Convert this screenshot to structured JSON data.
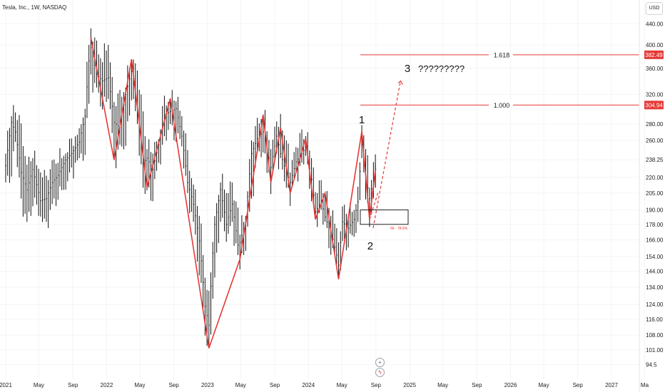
{
  "header": {
    "symbol": "Tesla, Inc., 1W, NASDAQ"
  },
  "currency_button": {
    "label": "USD"
  },
  "buttons": {
    "plus_icon": "+",
    "flash_icon": "ϟ"
  },
  "colors": {
    "accent": "#e53935",
    "candle": "#111111",
    "grid": "#f3f4f6",
    "axis_text": "#222222"
  },
  "chart_data": {
    "type": "candlestick",
    "instrument": "Tesla, Inc., 1W, NASDAQ",
    "scale": "log",
    "currency": "USD",
    "y_ticks": [
      440,
      400,
      360,
      320,
      280,
      260,
      238.25,
      220,
      205,
      190,
      178,
      166,
      154,
      144,
      134,
      124,
      116,
      108,
      101,
      94.5
    ],
    "x_ticks": [
      "2021",
      "May",
      "Sep",
      "2022",
      "May",
      "Sep",
      "2023",
      "May",
      "Sep",
      "2024",
      "May",
      "Sep",
      "2025",
      "May",
      "Sep",
      "2026",
      "May",
      "Sep",
      "2027",
      "Ma"
    ],
    "price_badges": [
      {
        "label": "382.49",
        "value": 382.49
      },
      {
        "label": "304.94",
        "value": 304.94
      }
    ],
    "fib_levels": [
      {
        "label": "1.618",
        "value": 382.49
      },
      {
        "label": "1.000",
        "value": 304.94
      }
    ],
    "wave_labels": [
      {
        "text": "1",
        "price": 270,
        "date": "2024-07-12"
      },
      {
        "text": "2",
        "price": 182,
        "date": "2024-08-09"
      },
      {
        "text": "3",
        "price": 340,
        "date": "2024-12-20"
      }
    ],
    "question_marks": "?????????",
    "target_zone": {
      "label": "66 - 78.6%",
      "low": 178,
      "high": 190
    },
    "zigzag": [
      {
        "date": "2021-11-05",
        "price": 414
      },
      {
        "date": "2022-01-28",
        "price": 238
      },
      {
        "date": "2022-04-01",
        "price": 375
      },
      {
        "date": "2022-05-27",
        "price": 210
      },
      {
        "date": "2022-08-19",
        "price": 314
      },
      {
        "date": "2023-01-06",
        "price": 101.8
      },
      {
        "date": "2023-04-28",
        "price": 152
      },
      {
        "date": "2023-07-21",
        "price": 292
      },
      {
        "date": "2023-08-18",
        "price": 215
      },
      {
        "date": "2023-09-22",
        "price": 275
      },
      {
        "date": "2023-10-27",
        "price": 205
      },
      {
        "date": "2023-12-22",
        "price": 262
      },
      {
        "date": "2024-01-26",
        "price": 182
      },
      {
        "date": "2024-03-01",
        "price": 205
      },
      {
        "date": "2024-04-19",
        "price": 139
      },
      {
        "date": "2024-07-12",
        "price": 271
      },
      {
        "date": "2024-08-09",
        "price": 182
      },
      {
        "date": "2024-08-30",
        "price": 228
      }
    ],
    "projection": [
      {
        "date": "2024-08-09",
        "price": 182
      },
      {
        "date": "2024-11-29",
        "price": 340
      }
    ],
    "weekly_closes": [
      {
        "date": "2021-01-01",
        "low": 215,
        "high": 245,
        "close": 232
      },
      {
        "date": "2021-01-22",
        "low": 235,
        "high": 290,
        "close": 282
      },
      {
        "date": "2021-02-05",
        "low": 260,
        "high": 295,
        "close": 270
      },
      {
        "date": "2021-02-26",
        "low": 200,
        "high": 265,
        "close": 225
      },
      {
        "date": "2021-03-19",
        "low": 180,
        "high": 230,
        "close": 208
      },
      {
        "date": "2021-04-09",
        "low": 205,
        "high": 240,
        "close": 228
      },
      {
        "date": "2021-05-07",
        "low": 188,
        "high": 225,
        "close": 198
      },
      {
        "date": "2021-05-28",
        "low": 180,
        "high": 210,
        "close": 200
      },
      {
        "date": "2021-06-18",
        "low": 195,
        "high": 232,
        "close": 215
      },
      {
        "date": "2021-07-09",
        "low": 210,
        "high": 235,
        "close": 222
      },
      {
        "date": "2021-08-06",
        "low": 215,
        "high": 245,
        "close": 238
      },
      {
        "date": "2021-08-27",
        "low": 230,
        "high": 250,
        "close": 245
      },
      {
        "date": "2021-09-24",
        "low": 240,
        "high": 265,
        "close": 258
      },
      {
        "date": "2021-10-15",
        "low": 255,
        "high": 300,
        "close": 290
      },
      {
        "date": "2021-10-29",
        "low": 320,
        "high": 400,
        "close": 372
      },
      {
        "date": "2021-11-05",
        "low": 350,
        "high": 414,
        "close": 395
      },
      {
        "date": "2021-11-26",
        "low": 330,
        "high": 390,
        "close": 350
      },
      {
        "date": "2021-12-17",
        "low": 310,
        "high": 370,
        "close": 340
      },
      {
        "date": "2022-01-07",
        "low": 330,
        "high": 400,
        "close": 345
      },
      {
        "date": "2022-01-28",
        "low": 238,
        "high": 300,
        "close": 282
      },
      {
        "date": "2022-02-18",
        "low": 255,
        "high": 310,
        "close": 275
      },
      {
        "date": "2022-03-11",
        "low": 260,
        "high": 330,
        "close": 320
      },
      {
        "date": "2022-04-01",
        "low": 330,
        "high": 375,
        "close": 355
      },
      {
        "date": "2022-04-22",
        "low": 280,
        "high": 350,
        "close": 292
      },
      {
        "date": "2022-05-13",
        "low": 210,
        "high": 280,
        "close": 235
      },
      {
        "date": "2022-05-27",
        "low": 210,
        "high": 250,
        "close": 240
      },
      {
        "date": "2022-06-17",
        "low": 210,
        "high": 245,
        "close": 228
      },
      {
        "date": "2022-07-08",
        "low": 235,
        "high": 260,
        "close": 255
      },
      {
        "date": "2022-07-29",
        "low": 265,
        "high": 300,
        "close": 292
      },
      {
        "date": "2022-08-19",
        "low": 280,
        "high": 314,
        "close": 296
      },
      {
        "date": "2022-09-09",
        "low": 275,
        "high": 310,
        "close": 300
      },
      {
        "date": "2022-09-30",
        "low": 255,
        "high": 290,
        "close": 265
      },
      {
        "date": "2022-10-21",
        "low": 205,
        "high": 235,
        "close": 215
      },
      {
        "date": "2022-11-11",
        "low": 180,
        "high": 210,
        "close": 195
      },
      {
        "date": "2022-12-02",
        "low": 150,
        "high": 185,
        "close": 165
      },
      {
        "date": "2022-12-23",
        "low": 110,
        "high": 140,
        "close": 123
      },
      {
        "date": "2023-01-06",
        "low": 101.8,
        "high": 125,
        "close": 113
      },
      {
        "date": "2023-01-27",
        "low": 140,
        "high": 180,
        "close": 178
      },
      {
        "date": "2023-02-17",
        "low": 190,
        "high": 215,
        "close": 208
      },
      {
        "date": "2023-03-10",
        "low": 170,
        "high": 205,
        "close": 178
      },
      {
        "date": "2023-03-31",
        "low": 180,
        "high": 205,
        "close": 195
      },
      {
        "date": "2023-04-21",
        "low": 155,
        "high": 185,
        "close": 162
      },
      {
        "date": "2023-04-28",
        "low": 152,
        "high": 170,
        "close": 164
      },
      {
        "date": "2023-05-19",
        "low": 165,
        "high": 185,
        "close": 180
      },
      {
        "date": "2023-06-09",
        "low": 200,
        "high": 250,
        "close": 245
      },
      {
        "date": "2023-06-30",
        "low": 245,
        "high": 275,
        "close": 262
      },
      {
        "date": "2023-07-21",
        "low": 255,
        "high": 292,
        "close": 270
      },
      {
        "date": "2023-08-18",
        "low": 215,
        "high": 250,
        "close": 230
      },
      {
        "date": "2023-09-08",
        "low": 245,
        "high": 275,
        "close": 265
      },
      {
        "date": "2023-09-22",
        "low": 240,
        "high": 278,
        "close": 245
      },
      {
        "date": "2023-10-13",
        "low": 215,
        "high": 260,
        "close": 225
      },
      {
        "date": "2023-10-27",
        "low": 205,
        "high": 225,
        "close": 215
      },
      {
        "date": "2023-11-17",
        "low": 225,
        "high": 248,
        "close": 236
      },
      {
        "date": "2023-12-08",
        "low": 235,
        "high": 258,
        "close": 245
      },
      {
        "date": "2023-12-22",
        "low": 245,
        "high": 265,
        "close": 252
      },
      {
        "date": "2024-01-12",
        "low": 210,
        "high": 240,
        "close": 218
      },
      {
        "date": "2024-01-26",
        "low": 182,
        "high": 205,
        "close": 188
      },
      {
        "date": "2024-02-16",
        "low": 190,
        "high": 205,
        "close": 198
      },
      {
        "date": "2024-03-01",
        "low": 180,
        "high": 205,
        "close": 184
      },
      {
        "date": "2024-03-22",
        "low": 165,
        "high": 185,
        "close": 172
      },
      {
        "date": "2024-04-12",
        "low": 150,
        "high": 175,
        "close": 155
      },
      {
        "date": "2024-04-19",
        "low": 139,
        "high": 155,
        "close": 148
      },
      {
        "date": "2024-05-03",
        "low": 165,
        "high": 190,
        "close": 180
      },
      {
        "date": "2024-05-24",
        "low": 170,
        "high": 185,
        "close": 175
      },
      {
        "date": "2024-06-14",
        "low": 172,
        "high": 190,
        "close": 182
      },
      {
        "date": "2024-06-28",
        "low": 180,
        "high": 200,
        "close": 197
      },
      {
        "date": "2024-07-12",
        "low": 240,
        "high": 271,
        "close": 255
      },
      {
        "date": "2024-07-26",
        "low": 210,
        "high": 250,
        "close": 220
      },
      {
        "date": "2024-08-09",
        "low": 182,
        "high": 210,
        "close": 200
      },
      {
        "date": "2024-08-23",
        "low": 200,
        "high": 225,
        "close": 218
      },
      {
        "date": "2024-08-30",
        "low": 210,
        "high": 235,
        "close": 228
      }
    ]
  }
}
